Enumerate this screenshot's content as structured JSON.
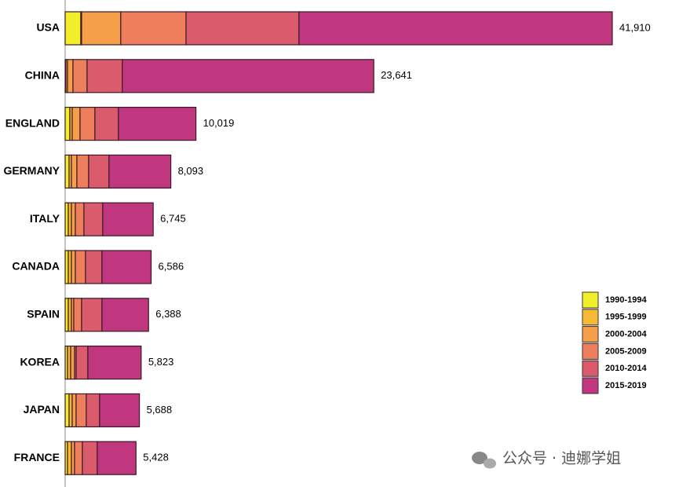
{
  "chart_data": {
    "type": "stacked-bar-horizontal",
    "categories": [
      "USA",
      "CHINA",
      "ENGLAND",
      "GERMANY",
      "ITALY",
      "CANADA",
      "SPAIN",
      "KOREA",
      "JAPAN",
      "FRANCE"
    ],
    "series": [
      {
        "name": "1990-1994",
        "color": "#f3ee2a",
        "values": [
          1200,
          60,
          360,
          300,
          240,
          240,
          240,
          180,
          300,
          180
        ]
      },
      {
        "name": "1995-1999",
        "color": "#f7b834",
        "values": [
          60,
          120,
          180,
          180,
          240,
          240,
          240,
          240,
          240,
          300
        ]
      },
      {
        "name": "2000-2004",
        "color": "#f59f4a",
        "values": [
          3000,
          420,
          600,
          420,
          300,
          300,
          180,
          300,
          300,
          240
        ]
      },
      {
        "name": "2005-2009",
        "color": "#ee7f5c",
        "values": [
          5000,
          1080,
          1140,
          900,
          660,
          780,
          600,
          120,
          780,
          600
        ]
      },
      {
        "name": "2010-2014",
        "color": "#d95b6c",
        "values": [
          8650,
          2700,
          1800,
          1560,
          1440,
          1260,
          1560,
          900,
          1020,
          1140
        ]
      },
      {
        "name": "2015-2019",
        "color": "#c0377f",
        "values": [
          24000,
          19261,
          5939,
          4733,
          3865,
          3766,
          3568,
          4083,
          3048,
          2968
        ]
      }
    ],
    "totals": [
      41910,
      23641,
      10019,
      8093,
      6745,
      6586,
      6388,
      5823,
      5688,
      5428
    ],
    "total_labels": [
      "41,910",
      "23,641",
      "10,019",
      "8,093",
      "6,745",
      "6,586",
      "6,388",
      "5,823",
      "5,688",
      "5,428"
    ],
    "watermark": "公众号 · 迪娜学姐"
  }
}
